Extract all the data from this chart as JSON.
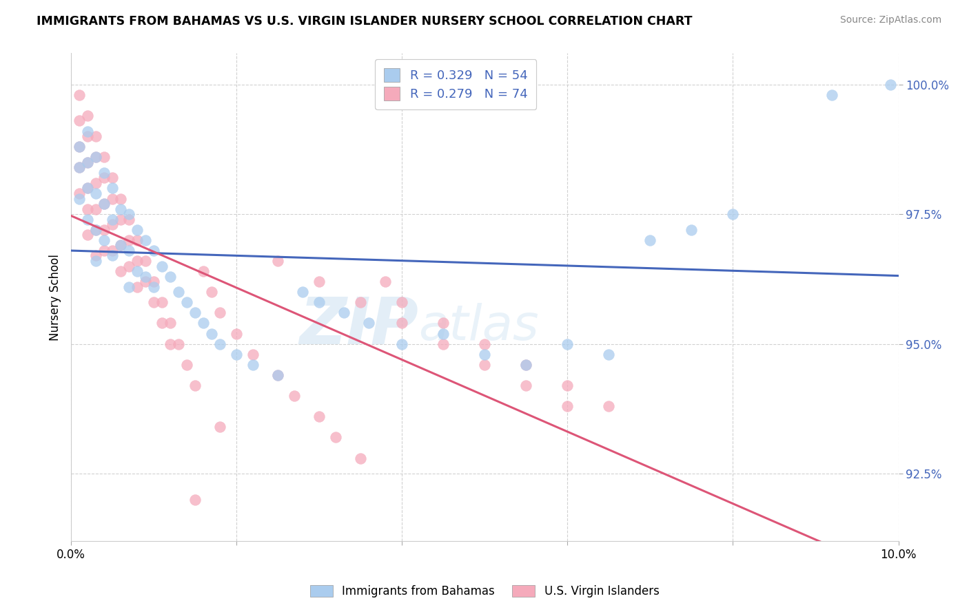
{
  "title": "IMMIGRANTS FROM BAHAMAS VS U.S. VIRGIN ISLANDER NURSERY SCHOOL CORRELATION CHART",
  "source": "Source: ZipAtlas.com",
  "ylabel": "Nursery School",
  "xlim": [
    0.0,
    0.1
  ],
  "ylim": [
    0.912,
    1.006
  ],
  "ytick_vals": [
    0.925,
    0.95,
    0.975,
    1.0
  ],
  "ytick_labels": [
    "92.5%",
    "95.0%",
    "97.5%",
    "100.0%"
  ],
  "xtick_vals": [
    0.0,
    0.02,
    0.04,
    0.06,
    0.08,
    0.1
  ],
  "xtick_labels": [
    "0.0%",
    "",
    "",
    "",
    "",
    "10.0%"
  ],
  "blue_color": "#aaccee",
  "pink_color": "#f5aabb",
  "blue_line_color": "#4466bb",
  "pink_line_color": "#dd5577",
  "blue_label": "Immigrants from Bahamas",
  "pink_label": "U.S. Virgin Islanders",
  "legend_blue": "R = 0.329   N = 54",
  "legend_pink": "R = 0.279   N = 74",
  "blue_x": [
    0.001,
    0.001,
    0.001,
    0.002,
    0.002,
    0.002,
    0.002,
    0.003,
    0.003,
    0.003,
    0.003,
    0.004,
    0.004,
    0.004,
    0.005,
    0.005,
    0.005,
    0.006,
    0.006,
    0.007,
    0.007,
    0.007,
    0.008,
    0.008,
    0.009,
    0.009,
    0.01,
    0.01,
    0.011,
    0.012,
    0.013,
    0.014,
    0.015,
    0.016,
    0.017,
    0.018,
    0.02,
    0.022,
    0.025,
    0.028,
    0.03,
    0.033,
    0.036,
    0.04,
    0.045,
    0.05,
    0.055,
    0.06,
    0.065,
    0.07,
    0.075,
    0.08,
    0.092,
    0.099
  ],
  "blue_y": [
    0.988,
    0.984,
    0.978,
    0.991,
    0.985,
    0.98,
    0.974,
    0.986,
    0.979,
    0.972,
    0.966,
    0.983,
    0.977,
    0.97,
    0.98,
    0.974,
    0.967,
    0.976,
    0.969,
    0.975,
    0.968,
    0.961,
    0.972,
    0.964,
    0.97,
    0.963,
    0.968,
    0.961,
    0.965,
    0.963,
    0.96,
    0.958,
    0.956,
    0.954,
    0.952,
    0.95,
    0.948,
    0.946,
    0.944,
    0.96,
    0.958,
    0.956,
    0.954,
    0.95,
    0.952,
    0.948,
    0.946,
    0.95,
    0.948,
    0.97,
    0.972,
    0.975,
    0.998,
    1.0
  ],
  "pink_x": [
    0.001,
    0.001,
    0.001,
    0.001,
    0.001,
    0.002,
    0.002,
    0.002,
    0.002,
    0.002,
    0.002,
    0.003,
    0.003,
    0.003,
    0.003,
    0.003,
    0.003,
    0.004,
    0.004,
    0.004,
    0.004,
    0.004,
    0.005,
    0.005,
    0.005,
    0.005,
    0.006,
    0.006,
    0.006,
    0.006,
    0.007,
    0.007,
    0.007,
    0.008,
    0.008,
    0.008,
    0.009,
    0.009,
    0.01,
    0.01,
    0.011,
    0.011,
    0.012,
    0.012,
    0.013,
    0.014,
    0.015,
    0.016,
    0.017,
    0.018,
    0.02,
    0.022,
    0.025,
    0.027,
    0.03,
    0.032,
    0.035,
    0.038,
    0.04,
    0.045,
    0.05,
    0.055,
    0.06,
    0.065,
    0.015,
    0.025,
    0.03,
    0.035,
    0.04,
    0.045,
    0.05,
    0.055,
    0.06,
    0.018
  ],
  "pink_y": [
    0.998,
    0.993,
    0.988,
    0.984,
    0.979,
    0.994,
    0.99,
    0.985,
    0.98,
    0.976,
    0.971,
    0.99,
    0.986,
    0.981,
    0.976,
    0.972,
    0.967,
    0.986,
    0.982,
    0.977,
    0.972,
    0.968,
    0.982,
    0.978,
    0.973,
    0.968,
    0.978,
    0.974,
    0.969,
    0.964,
    0.974,
    0.97,
    0.965,
    0.97,
    0.966,
    0.961,
    0.966,
    0.962,
    0.962,
    0.958,
    0.958,
    0.954,
    0.954,
    0.95,
    0.95,
    0.946,
    0.942,
    0.964,
    0.96,
    0.956,
    0.952,
    0.948,
    0.944,
    0.94,
    0.936,
    0.932,
    0.928,
    0.962,
    0.958,
    0.954,
    0.95,
    0.946,
    0.942,
    0.938,
    0.92,
    0.966,
    0.962,
    0.958,
    0.954,
    0.95,
    0.946,
    0.942,
    0.938,
    0.934
  ]
}
